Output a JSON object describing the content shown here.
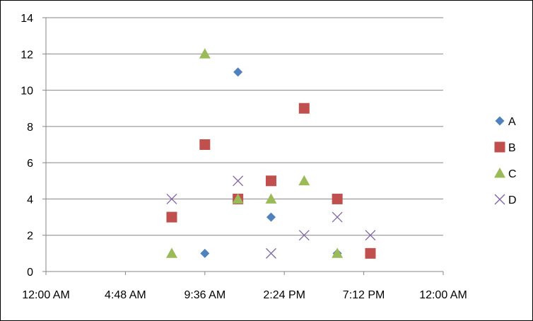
{
  "chart_data": {
    "type": "scatter",
    "x_tick_labels": [
      "12:00 AM",
      "4:48 AM",
      "9:36 AM",
      "2:24 PM",
      "7:12 PM",
      "12:00 AM"
    ],
    "y_tick_labels": [
      "0",
      "2",
      "4",
      "6",
      "8",
      "10",
      "12",
      "14"
    ],
    "ylim": [
      0,
      14
    ],
    "xlim": [
      "12:00 AM",
      "12:00 AM (next day)"
    ],
    "grid": "horizontal",
    "legend_position": "right",
    "series": [
      {
        "name": "A",
        "marker": "diamond",
        "color": "#4F81BD",
        "points": [
          {
            "x": "9:36 AM",
            "y": 1
          },
          {
            "x": "11:36 AM",
            "y": 11
          },
          {
            "x": "1:36 PM",
            "y": 3
          },
          {
            "x": "5:36 PM",
            "y": 1
          }
        ]
      },
      {
        "name": "B",
        "marker": "square",
        "color": "#C0504D",
        "points": [
          {
            "x": "7:36 AM",
            "y": 3
          },
          {
            "x": "9:36 AM",
            "y": 7
          },
          {
            "x": "11:36 AM",
            "y": 4
          },
          {
            "x": "1:36 PM",
            "y": 5
          },
          {
            "x": "3:36 PM",
            "y": 9
          },
          {
            "x": "5:36 PM",
            "y": 4
          },
          {
            "x": "7:36 PM",
            "y": 1
          }
        ]
      },
      {
        "name": "C",
        "marker": "triangle",
        "color": "#9BBB59",
        "points": [
          {
            "x": "7:36 AM",
            "y": 1
          },
          {
            "x": "9:36 AM",
            "y": 12
          },
          {
            "x": "11:36 AM",
            "y": 4
          },
          {
            "x": "1:36 PM",
            "y": 4
          },
          {
            "x": "3:36 PM",
            "y": 5
          },
          {
            "x": "5:36 PM",
            "y": 1
          }
        ]
      },
      {
        "name": "D",
        "marker": "x",
        "color": "#8064A2",
        "points": [
          {
            "x": "7:36 AM",
            "y": 4
          },
          {
            "x": "11:36 AM",
            "y": 5
          },
          {
            "x": "1:36 PM",
            "y": 1
          },
          {
            "x": "3:36 PM",
            "y": 2
          },
          {
            "x": "5:36 PM",
            "y": 3
          },
          {
            "x": "7:36 PM",
            "y": 2
          }
        ]
      }
    ]
  }
}
